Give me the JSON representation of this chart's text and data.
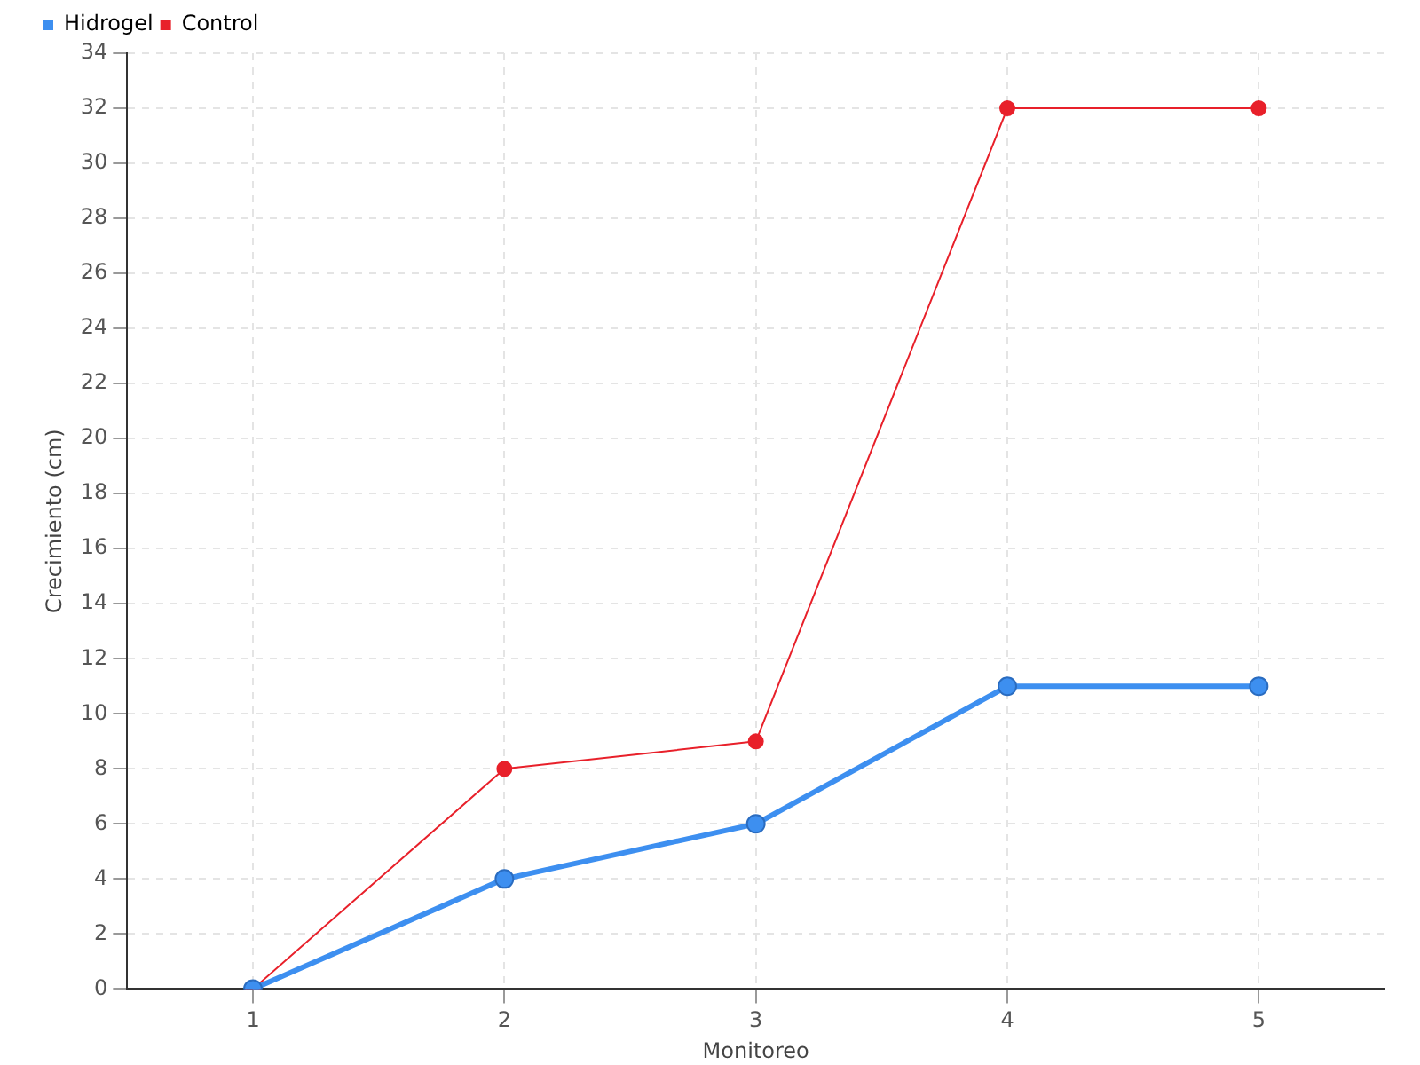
{
  "chart_data": {
    "type": "line",
    "xlabel": "Monitoreo",
    "ylabel": "Crecimiento (cm)",
    "categories": [
      "1",
      "2",
      "3",
      "4",
      "5"
    ],
    "series": [
      {
        "name": "Hidrogel",
        "color": "#3d8ff0",
        "values": [
          0,
          4,
          6,
          11,
          11
        ]
      },
      {
        "name": "Control",
        "color": "#e8202a",
        "values": [
          0,
          8,
          9,
          32,
          32
        ]
      }
    ],
    "ylim": [
      0,
      34
    ],
    "yticks": [
      0,
      2,
      4,
      6,
      8,
      10,
      12,
      14,
      16,
      18,
      20,
      22,
      24,
      26,
      28,
      30,
      32,
      34
    ],
    "grid": true,
    "legend": "top left",
    "marker": "circle",
    "line_style": "solid"
  }
}
